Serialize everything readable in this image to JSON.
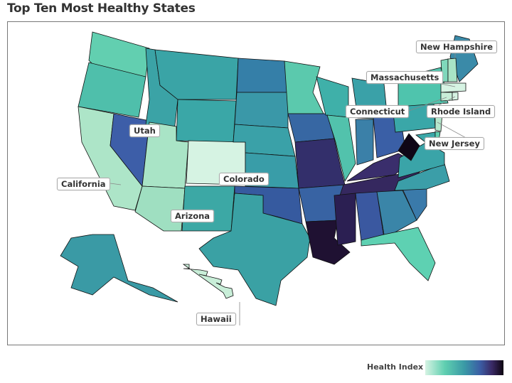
{
  "title": "Top Ten Most Healthy States",
  "labels": [
    {
      "name": "New Hampshire"
    },
    {
      "name": "Massachusetts"
    },
    {
      "name": "Connecticut"
    },
    {
      "name": "Rhode Island"
    },
    {
      "name": "Utah"
    },
    {
      "name": "New Jersey"
    },
    {
      "name": "California"
    },
    {
      "name": "Colorado"
    },
    {
      "name": "Arizona"
    },
    {
      "name": "Hawaii"
    }
  ],
  "legend": {
    "title": "Health Index",
    "colors": [
      "#d6f3e3",
      "#5fcfb0",
      "#3a9aa6",
      "#3b5ea5",
      "#3a2a66",
      "#0e0510"
    ]
  },
  "state_colors": {
    "WA": "#62cfb0",
    "OR": "#4fbfab",
    "CA": "#ade5c8",
    "NV": "#3d5ea8",
    "ID": "#3ba3a6",
    "MT": "#3aa4a6",
    "WY": "#3aa7a7",
    "UT": "#a9e4c6",
    "CO": "#d6f3e3",
    "AZ": "#9fdfc1",
    "NM": "#3ca8a5",
    "ND": "#357fa8",
    "SD": "#3a98a8",
    "NE": "#3aa1a8",
    "KS": "#399da8",
    "OK": "#365a9f",
    "TX": "#3aa1a4",
    "MN": "#5bc9ad",
    "IA": "#3767a3",
    "MO": "#332f6b",
    "AR": "#3863a3",
    "LA": "#1f1132",
    "WI": "#3fb0a9",
    "IL": "#52c2ac",
    "MI": "#3aa1a8",
    "IN": "#3b80a8",
    "OH": "#3a5fa6",
    "KY": "#3a2e6c",
    "TN": "#35285f",
    "MS": "#2b1f52",
    "AL": "#3a58a0",
    "GA": "#3a85a8",
    "FL": "#5ed1b2",
    "SC": "#3a7aaa",
    "NC": "#3b9ea8",
    "VA": "#3aa4a8",
    "WV": "#0f0616",
    "PA": "#3aa7a8",
    "NY": "#4fc4ad",
    "ME": "#3a8aa8",
    "NH": "#a9e4c6",
    "VT": "#7fd8bb",
    "MA": "#d6f3e3",
    "CT": "#c8eed8",
    "RI": "#d6f3e3",
    "NJ": "#b6e8cd",
    "MD": "#3aa7a8",
    "DE": "#5fcfb0",
    "AK": "#3a9aa5",
    "HI": "#c8eed8"
  }
}
